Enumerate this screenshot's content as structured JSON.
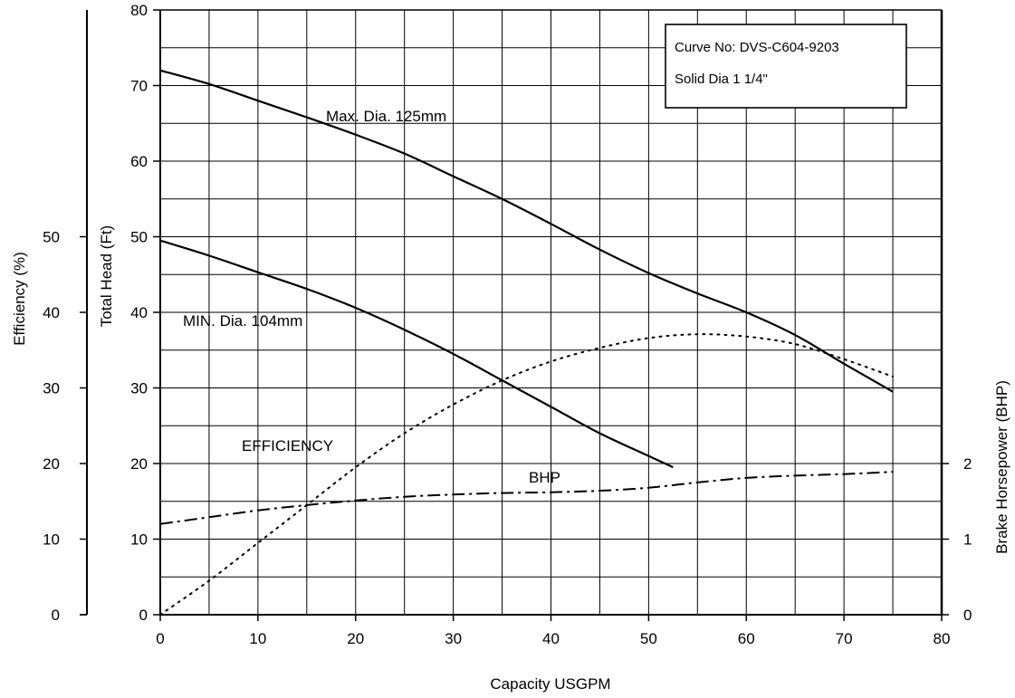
{
  "chart_data": {
    "type": "line",
    "title": "",
    "xlabel": "Capacity USGPM",
    "ylabel_head": "Total Head (Ft)",
    "ylabel_efficiency": "Efficiency (%)",
    "ylabel_bhp": "Brake Horsepower (BHP)",
    "xlim": [
      0,
      80
    ],
    "x_ticks": [
      "0",
      "10",
      "20",
      "30",
      "40",
      "50",
      "60",
      "70",
      "80"
    ],
    "head_ylim": [
      0,
      80
    ],
    "head_ticks": [
      "0",
      "10",
      "20",
      "30",
      "40",
      "50",
      "60",
      "70",
      "80"
    ],
    "efficiency_ylim": [
      0,
      50
    ],
    "efficiency_ticks": [
      "0",
      "10",
      "20",
      "30",
      "40",
      "50"
    ],
    "bhp_ylim": [
      0,
      8
    ],
    "bhp_ticks": [
      "0",
      "1",
      "2"
    ],
    "grid": true,
    "info_box": {
      "line1": "Curve No: DVS-C604-9203",
      "line2": "Solid Dia 1 1/4\""
    },
    "annotations": {
      "max_dia": "Max. Dia. 125mm",
      "min_dia": "MIN. Dia. 104mm",
      "efficiency": "EFFICIENCY",
      "bhp": "BHP"
    },
    "series": [
      {
        "axis": "head",
        "style": "solid",
        "x": [
          0,
          5,
          10,
          15,
          20,
          25,
          30,
          35,
          40,
          45,
          50,
          55,
          60,
          65,
          70,
          75
        ],
        "y": [
          72,
          70.2,
          68,
          65.8,
          63.5,
          61,
          58,
          55,
          51.7,
          48.3,
          45.2,
          42.5,
          40,
          37,
          33.2,
          29.5
        ]
      },
      {
        "axis": "head",
        "style": "solid",
        "x": [
          0,
          5,
          10,
          15,
          20,
          25,
          30,
          35,
          40,
          45,
          50,
          52.5
        ],
        "y": [
          49.5,
          47.5,
          45.3,
          43.1,
          40.6,
          37.7,
          34.5,
          31,
          27.5,
          24,
          21,
          19.5
        ]
      },
      {
        "axis": "efficiency",
        "style": "dotted",
        "x": [
          0,
          5,
          10,
          15,
          20,
          25,
          30,
          35,
          40,
          45,
          50,
          55,
          60,
          65,
          70,
          75
        ],
        "y": [
          0,
          4.5,
          9.5,
          14.5,
          19.5,
          24,
          27.8,
          31,
          33.5,
          35.3,
          36.6,
          37.1,
          36.8,
          35.8,
          33.8,
          31.5
        ]
      },
      {
        "axis": "bhp",
        "style": "dashdot",
        "x": [
          0,
          5,
          10,
          15,
          20,
          25,
          30,
          35,
          40,
          45,
          50,
          55,
          60,
          65,
          70,
          75
        ],
        "y": [
          1.2,
          1.29,
          1.38,
          1.45,
          1.51,
          1.56,
          1.59,
          1.61,
          1.62,
          1.64,
          1.68,
          1.75,
          1.81,
          1.84,
          1.86,
          1.89
        ]
      }
    ]
  }
}
